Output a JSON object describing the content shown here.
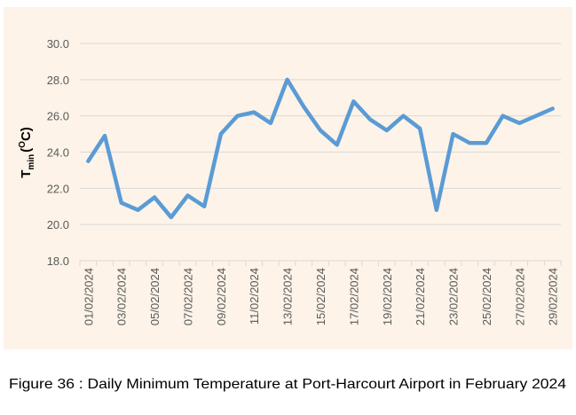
{
  "chart_data": {
    "type": "line",
    "title": "Figure 36 : Daily Minimum Temperature at Port-Harcourt Airport in February 2024",
    "ylabel": {
      "main": "T",
      "sub": "min",
      "open": "(",
      "sup": "O",
      "close": "C)"
    },
    "categories": [
      "01/02/2024",
      null,
      "03/02/2024",
      null,
      "05/02/2024",
      null,
      "07/02/2024",
      null,
      "09/02/2024",
      null,
      "11/02/2024",
      null,
      "13/02/2024",
      null,
      "15/02/2024",
      null,
      "17/02/2024",
      null,
      "19/02/2024",
      null,
      "21/02/2024",
      null,
      "23/02/2024",
      null,
      "25/02/2024",
      null,
      "27/02/2024",
      null,
      "29/02/2024"
    ],
    "series": [
      {
        "name": "Tmin",
        "color": "#5b9bd5",
        "values": [
          23.5,
          24.9,
          21.2,
          20.8,
          21.5,
          20.4,
          21.6,
          21.0,
          25.0,
          26.0,
          26.2,
          25.6,
          28.0,
          26.5,
          25.2,
          24.4,
          26.8,
          25.8,
          25.2,
          26.0,
          25.3,
          20.8,
          25.0,
          24.5,
          24.5,
          26.0,
          25.6,
          26.0,
          26.4
        ]
      }
    ],
    "ylim": [
      18,
      30
    ],
    "yticks": [
      {
        "value": 18,
        "label": "18.0"
      },
      {
        "value": 20,
        "label": "20.0"
      },
      {
        "value": 22,
        "label": "22.0"
      },
      {
        "value": 24,
        "label": "24.0"
      },
      {
        "value": 26,
        "label": "26.0"
      },
      {
        "value": 28,
        "label": "28.0"
      },
      {
        "value": 30,
        "label": "30.0"
      }
    ],
    "grid": true
  }
}
